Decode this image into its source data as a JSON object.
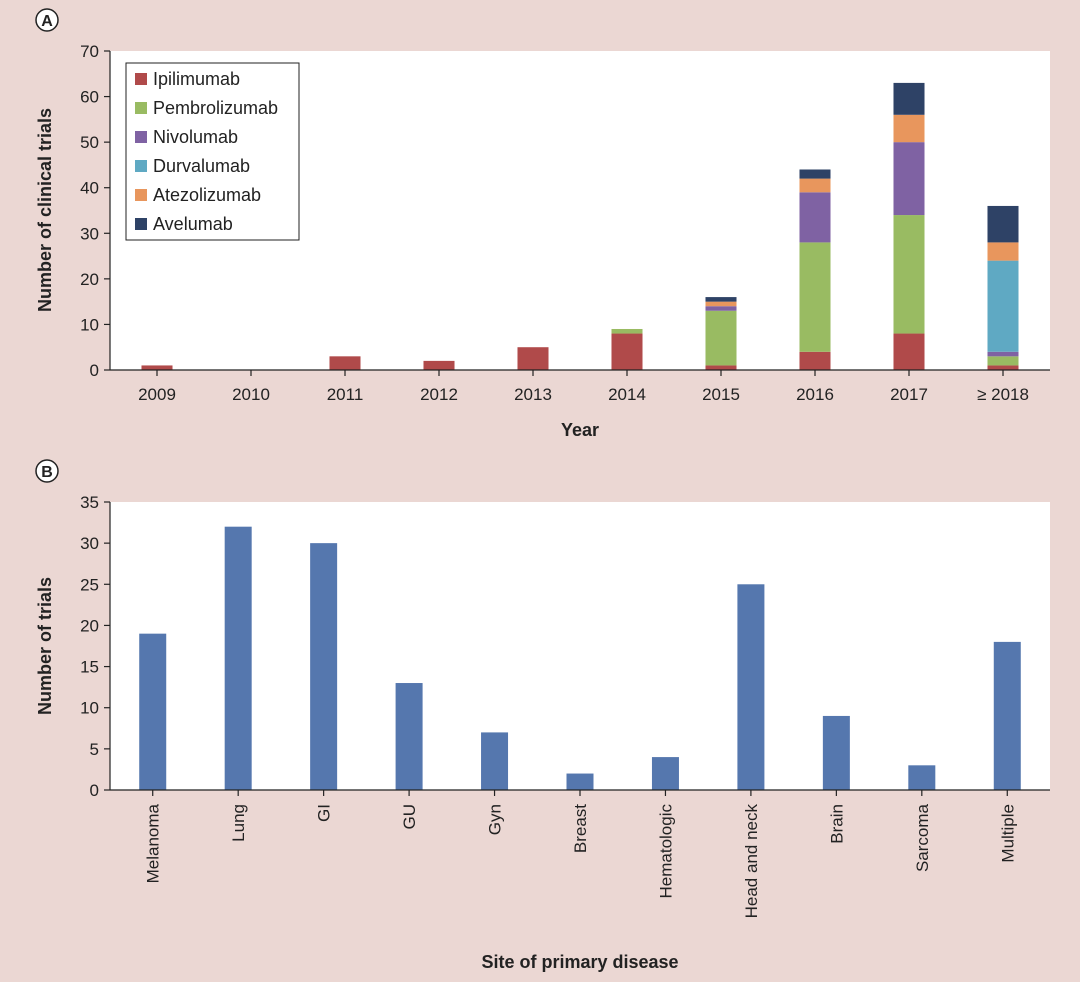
{
  "colors": {
    "background": "#ebd7d3",
    "plot_bg": "#ffffff",
    "axis": "#222222",
    "Ipilimumab": "#b04a4a",
    "Pembrolizumab": "#99bb62",
    "Nivolumab": "#7f62a3",
    "Durvalumab": "#5fa9c3",
    "Atezolizumab": "#e8965d",
    "Avelumab": "#2e4266",
    "bar_b": "#5577ae"
  },
  "chart_data": [
    {
      "panel_label": "A",
      "type": "bar",
      "stacked": true,
      "title": "",
      "xlabel": "Year",
      "ylabel": "Number of clinical trials",
      "ylim": [
        0,
        70
      ],
      "yticks": [
        0,
        10,
        20,
        30,
        40,
        50,
        60,
        70
      ],
      "categories": [
        "2009",
        "2010",
        "2011",
        "2012",
        "2013",
        "2014",
        "2015",
        "2016",
        "2017",
        "≥ 2018"
      ],
      "legend_position": "top-left",
      "grid": false,
      "series": [
        {
          "name": "Ipilimumab",
          "values": [
            1,
            0,
            3,
            2,
            5,
            8,
            1,
            4,
            8,
            1
          ]
        },
        {
          "name": "Pembrolizumab",
          "values": [
            0,
            0,
            0,
            0,
            0,
            1,
            12,
            24,
            26,
            2
          ]
        },
        {
          "name": "Nivolumab",
          "values": [
            0,
            0,
            0,
            0,
            0,
            0,
            1,
            11,
            16,
            1
          ]
        },
        {
          "name": "Durvalumab",
          "values": [
            0,
            0,
            0,
            0,
            0,
            0,
            0,
            0,
            0,
            20
          ]
        },
        {
          "name": "Atezolizumab",
          "values": [
            0,
            0,
            0,
            0,
            0,
            0,
            1,
            3,
            6,
            4
          ]
        },
        {
          "name": "Avelumab",
          "values": [
            0,
            0,
            0,
            0,
            0,
            0,
            1,
            2,
            7,
            8
          ]
        }
      ]
    },
    {
      "panel_label": "B",
      "type": "bar",
      "stacked": false,
      "title": "",
      "xlabel": "Site of primary disease",
      "ylabel": "Number of trials",
      "ylim": [
        0,
        35
      ],
      "yticks": [
        0,
        5,
        10,
        15,
        20,
        25,
        30,
        35
      ],
      "categories": [
        "Melanoma",
        "Lung",
        "GI",
        "GU",
        "Gyn",
        "Breast",
        "Hematologic",
        "Head and neck",
        "Brain",
        "Sarcoma",
        "Multiple"
      ],
      "grid": false,
      "series": [
        {
          "name": "Number of trials",
          "values": [
            19,
            32,
            30,
            13,
            7,
            2,
            4,
            25,
            9,
            3,
            18
          ]
        }
      ]
    }
  ]
}
